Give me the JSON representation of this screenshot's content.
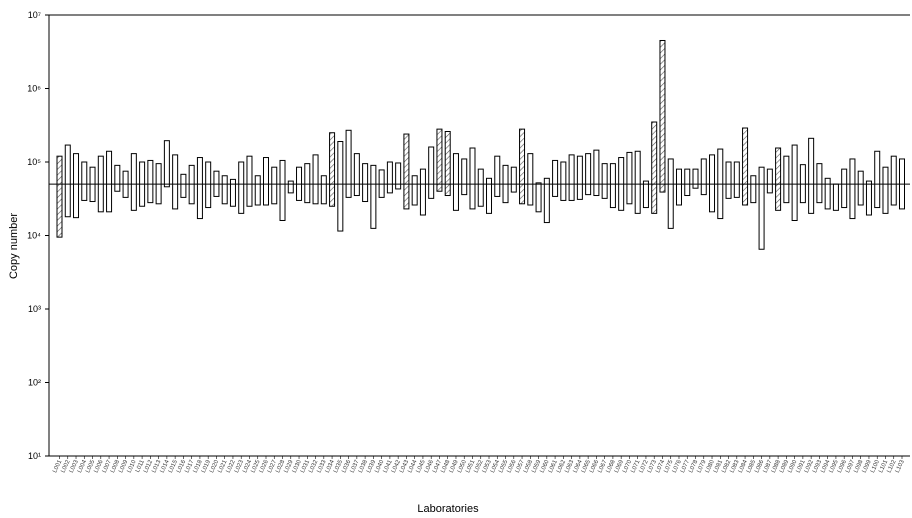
{
  "chart_data": {
    "type": "bar",
    "title": "",
    "xlabel": "Laboratories",
    "ylabel": "Copy number",
    "yscale": "log",
    "ylim": [
      10,
      10000000
    ],
    "y_ticks": [
      {
        "value": 10,
        "label": "10¹"
      },
      {
        "value": 100,
        "label": "10²"
      },
      {
        "value": 1000,
        "label": "10³"
      },
      {
        "value": 10000,
        "label": "10⁴"
      },
      {
        "value": 100000,
        "label": "10⁵"
      },
      {
        "value": 1000000,
        "label": "10⁶"
      },
      {
        "value": 10000000,
        "label": "10⁷"
      }
    ],
    "reference_line": 50000,
    "grid": false,
    "legend": "none",
    "colors": {
      "bar_stroke": "#000000",
      "bar_fill": "#ffffff",
      "hatch": "#555555",
      "axis": "#000000"
    },
    "categories": [
      "L001",
      "L002",
      "L003",
      "L004",
      "L005",
      "L006",
      "L007",
      "L008",
      "L009",
      "L010",
      "L011",
      "L012",
      "L013",
      "L014",
      "L015",
      "L016",
      "L017",
      "L018",
      "L019",
      "L020",
      "L021",
      "L022",
      "L023",
      "L024",
      "L025",
      "L026",
      "L027",
      "L028",
      "L029",
      "L030",
      "L031",
      "L032",
      "L033",
      "L034",
      "L035",
      "L036",
      "L037",
      "L038",
      "L039",
      "L040",
      "L041",
      "L042",
      "L043",
      "L044",
      "L045",
      "L046",
      "L047",
      "L048",
      "L049",
      "L050",
      "L051",
      "L052",
      "L053",
      "L054",
      "L055",
      "L056",
      "L057",
      "L058",
      "L059",
      "L060",
      "L061",
      "L062",
      "L063",
      "L064",
      "L065",
      "L066",
      "L067",
      "L068",
      "L069",
      "L070",
      "L071",
      "L072",
      "L073",
      "L074",
      "L075",
      "L076",
      "L077",
      "L078",
      "L079",
      "L080",
      "L081",
      "L082",
      "L083",
      "L084",
      "L085",
      "L086",
      "L087",
      "L088",
      "L089",
      "L090",
      "L091",
      "L092",
      "L093",
      "L094",
      "L095",
      "L096",
      "L097",
      "L098",
      "L099",
      "L100",
      "L101",
      "L102",
      "L103"
    ],
    "series": [
      {
        "low": [
          9500,
          18000,
          17500,
          30000,
          29000,
          21000,
          21000,
          40000,
          33000,
          22000,
          25000,
          28000,
          27000,
          46000,
          23000,
          33000,
          27000,
          17000,
          24000,
          34000,
          27000,
          25000,
          20000,
          25000,
          26000,
          26000,
          27000,
          16000,
          38000,
          30000,
          28000,
          27000,
          27000,
          25000,
          11500,
          33000,
          35000,
          29000,
          12500,
          33000,
          38000,
          43000,
          23000,
          26000,
          19000,
          32000,
          40000,
          35000,
          22000,
          36000,
          23000,
          25000,
          20000,
          34000,
          28000,
          39000,
          27000,
          26000,
          21000,
          15000,
          34000,
          30000,
          30000,
          31000,
          36000,
          35000,
          32000,
          24000,
          22000,
          27000,
          20000,
          24000,
          20000,
          39000,
          12500,
          26000,
          35000,
          44000,
          36000,
          21000,
          17000,
          32000,
          33000,
          26000,
          28000,
          6500,
          38000,
          22000,
          28000,
          16000,
          28000,
          20000,
          28000,
          23000,
          22000,
          24000,
          17000,
          26000,
          19000,
          24000,
          20000,
          26000,
          23000
        ],
        "high": [
          120000,
          170000,
          130000,
          100000,
          85000,
          120000,
          140000,
          90000,
          75000,
          130000,
          100000,
          105000,
          95000,
          195000,
          125000,
          68000,
          90000,
          115000,
          100000,
          75000,
          65000,
          58000,
          100000,
          120000,
          65000,
          115000,
          85000,
          105000,
          55000,
          85000,
          95000,
          125000,
          65000,
          250000,
          190000,
          270000,
          130000,
          95000,
          90000,
          78000,
          100000,
          97000,
          240000,
          65000,
          80000,
          160000,
          280000,
          260000,
          130000,
          110000,
          155000,
          80000,
          60000,
          120000,
          90000,
          85000,
          280000,
          130000,
          52000,
          60000,
          105000,
          100000,
          125000,
          120000,
          130000,
          145000,
          95000,
          95000,
          115000,
          135000,
          140000,
          55000,
          350000,
          4500000,
          110000,
          80000,
          80000,
          80000,
          110000,
          125000,
          150000,
          100000,
          100000,
          290000,
          65000,
          85000,
          80000,
          155000,
          120000,
          170000,
          92000,
          210000,
          95000,
          60000,
          50000,
          80000,
          110000,
          75000,
          55000,
          140000,
          85000,
          120000,
          110000
        ],
        "hatched": [
          1,
          0,
          0,
          0,
          0,
          0,
          0,
          0,
          0,
          0,
          0,
          0,
          0,
          0,
          0,
          0,
          0,
          0,
          0,
          0,
          0,
          0,
          0,
          0,
          0,
          0,
          0,
          0,
          0,
          0,
          0,
          0,
          0,
          1,
          0,
          0,
          0,
          0,
          0,
          0,
          0,
          0,
          1,
          0,
          0,
          0,
          1,
          1,
          0,
          0,
          0,
          0,
          0,
          0,
          0,
          0,
          1,
          0,
          0,
          0,
          0,
          0,
          0,
          0,
          0,
          0,
          0,
          0,
          0,
          0,
          0,
          0,
          1,
          1,
          0,
          0,
          0,
          0,
          0,
          0,
          0,
          0,
          0,
          1,
          0,
          0,
          0,
          1,
          0,
          0,
          0,
          0,
          0,
          0,
          0,
          0,
          0,
          0,
          0,
          0,
          0,
          0,
          0
        ]
      }
    ]
  }
}
